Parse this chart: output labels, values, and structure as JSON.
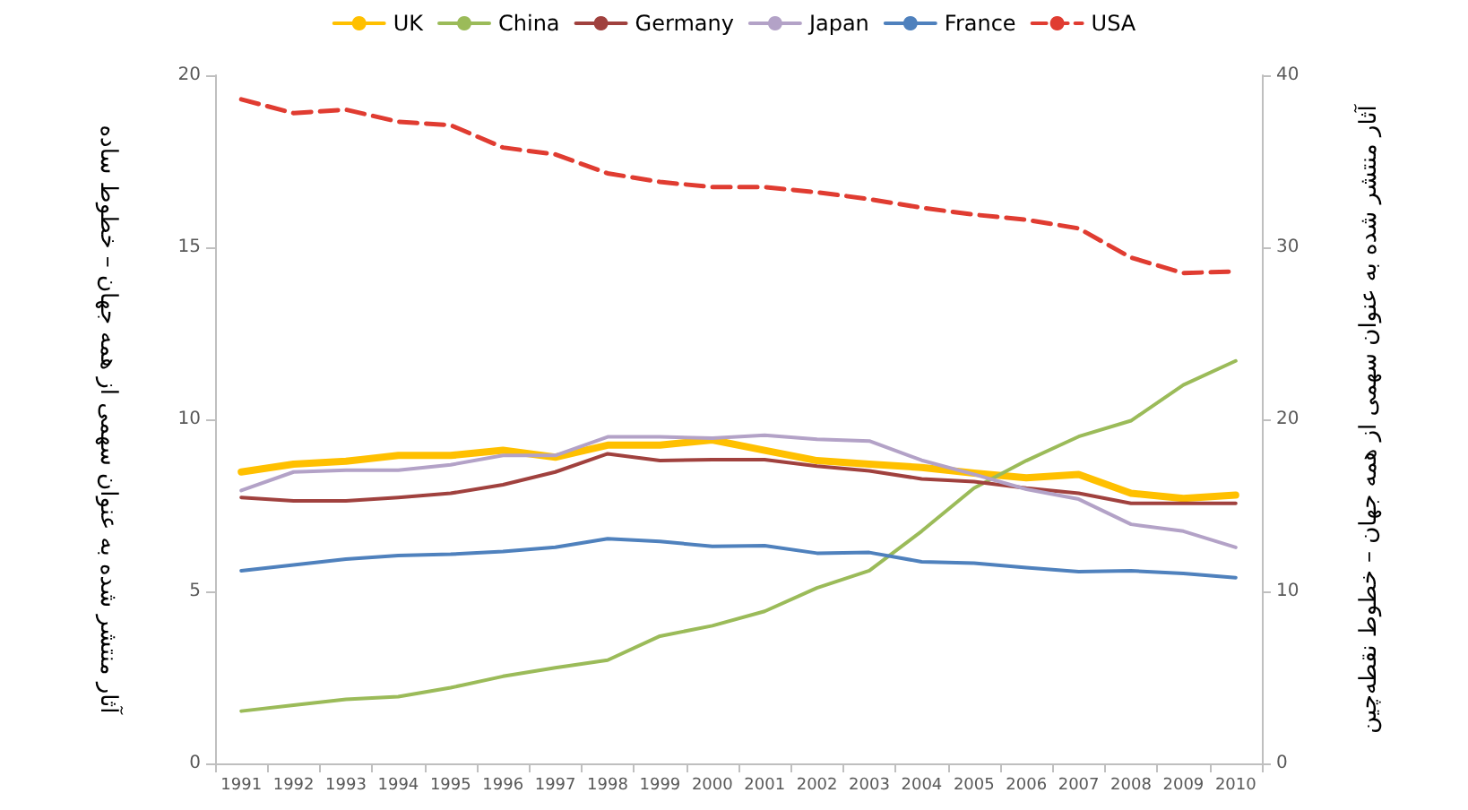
{
  "chart_data": {
    "type": "line",
    "ylabel": "آثار منتشر شده به عنوان سهمی از همه جهان – خطوط ساده",
    "y2label": "آثار منتشر شده به عنوان سهمی از همه جهان – خطوط نقطه‌چین",
    "categories": [
      "1991",
      "1992",
      "1993",
      "1994",
      "1995",
      "1996",
      "1997",
      "1998",
      "1999",
      "2000",
      "2001",
      "2002",
      "2003",
      "2004",
      "2005",
      "2006",
      "2007",
      "2008",
      "2009",
      "2010"
    ],
    "series": [
      {
        "name": "UK",
        "color": "#ffc000",
        "values": [
          8.47,
          8.7,
          8.78,
          8.95,
          8.95,
          9.1,
          8.9,
          9.25,
          9.25,
          9.4,
          9.1,
          8.8,
          8.7,
          8.6,
          8.44,
          8.3,
          8.4,
          7.85,
          7.7,
          7.8
        ]
      },
      {
        "name": "China",
        "color": "#9bbb59",
        "values": [
          1.52,
          1.69,
          1.86,
          1.94,
          2.2,
          2.53,
          2.78,
          3.0,
          3.7,
          4.0,
          4.42,
          5.1,
          5.6,
          6.75,
          8.0,
          8.8,
          9.5,
          9.96,
          11.0,
          11.7
        ]
      },
      {
        "name": "Germany",
        "color": "#a0413e",
        "values": [
          7.73,
          7.63,
          7.63,
          7.73,
          7.85,
          8.1,
          8.47,
          9.0,
          8.8,
          8.83,
          8.83,
          8.64,
          8.5,
          8.27,
          8.19,
          8.0,
          7.85,
          7.56,
          7.56,
          7.56
        ]
      },
      {
        "name": "Japan",
        "color": "#b3a2c7",
        "values": [
          7.93,
          8.47,
          8.52,
          8.52,
          8.68,
          8.95,
          8.95,
          9.49,
          9.49,
          9.45,
          9.54,
          9.42,
          9.37,
          8.81,
          8.4,
          7.97,
          7.68,
          6.95,
          6.75,
          6.28
        ]
      },
      {
        "name": "France",
        "color": "#4f81bd",
        "values": [
          5.6,
          5.77,
          5.94,
          6.04,
          6.08,
          6.16,
          6.28,
          6.53,
          6.45,
          6.31,
          6.33,
          6.11,
          6.13,
          5.86,
          5.82,
          5.69,
          5.57,
          5.6,
          5.52,
          5.4
        ]
      },
      {
        "name": "USA",
        "color": "#e03c31",
        "axis": "y2",
        "line_style": "dashed",
        "values": [
          38.6,
          37.8,
          38.0,
          37.3,
          37.1,
          35.8,
          35.4,
          34.3,
          33.8,
          33.5,
          33.5,
          33.2,
          32.8,
          32.3,
          31.9,
          31.6,
          31.1,
          29.4,
          28.5,
          28.6
        ]
      }
    ],
    "ylim": [
      0,
      20
    ],
    "yticks": [
      0,
      5,
      10,
      15,
      20
    ],
    "y2lim": [
      0,
      40
    ],
    "y2ticks": [
      0,
      10,
      20,
      30,
      40
    ],
    "legend": "top",
    "grid": false,
    "marker": "none",
    "line_style": "solid"
  }
}
